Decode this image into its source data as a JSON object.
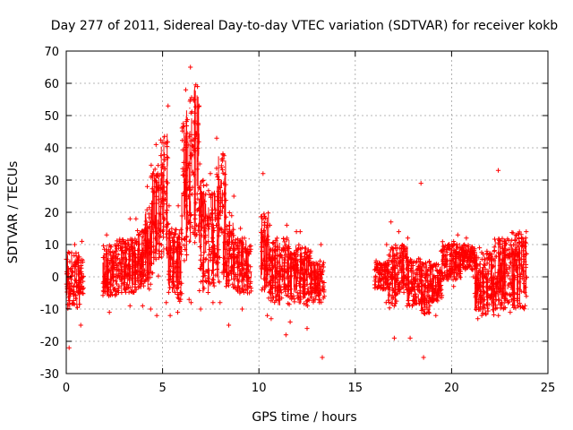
{
  "chart_data": {
    "type": "scatter",
    "title": "Day 277 of 2011, Sidereal Day-to-day VTEC variation (SDTVAR) for receiver kokb",
    "xlabel": "GPS time / hours",
    "ylabel": "SDTVAR / TECUs",
    "xlim": [
      0,
      25
    ],
    "ylim": [
      -30,
      70
    ],
    "xticks": [
      0,
      5,
      10,
      15,
      20,
      25
    ],
    "yticks": [
      -30,
      -20,
      -10,
      0,
      10,
      20,
      30,
      40,
      50,
      60,
      70
    ],
    "grid": true,
    "marker": "plus",
    "color": "#ff0000",
    "series": [
      {
        "name": "SDTVAR",
        "segments": [
          [
            0.0,
            0.7,
            -10,
            8,
            -22,
            10
          ],
          [
            0.7,
            0.9,
            -6,
            6,
            -15,
            11
          ],
          [
            1.9,
            2.6,
            -6,
            10,
            -11,
            13
          ],
          [
            2.6,
            3.6,
            -5,
            12,
            -9,
            18
          ],
          [
            3.6,
            4.1,
            -4,
            15,
            -9,
            18
          ],
          [
            4.1,
            4.4,
            -5,
            22,
            -10,
            28
          ],
          [
            4.4,
            4.9,
            0,
            35,
            -12,
            41
          ],
          [
            4.9,
            5.3,
            5,
            45,
            -8,
            53
          ],
          [
            5.3,
            5.7,
            -5,
            15,
            -12,
            22
          ],
          [
            5.7,
            6.0,
            -8,
            15,
            -11,
            22
          ],
          [
            6.0,
            6.4,
            5,
            55,
            -7,
            58
          ],
          [
            6.4,
            6.9,
            10,
            60,
            -8,
            65
          ],
          [
            6.9,
            7.4,
            -5,
            30,
            -10,
            35
          ],
          [
            7.4,
            7.8,
            -3,
            28,
            -8,
            32
          ],
          [
            7.8,
            8.3,
            -2,
            40,
            -8,
            43
          ],
          [
            8.3,
            8.7,
            -4,
            20,
            -15,
            25
          ],
          [
            8.7,
            9.6,
            -5,
            12,
            -10,
            15
          ],
          [
            10.1,
            10.5,
            -5,
            20,
            -12,
            32
          ],
          [
            10.5,
            11.0,
            -8,
            12,
            -13,
            16
          ],
          [
            11.0,
            11.6,
            -9,
            12,
            -18,
            16
          ],
          [
            11.6,
            12.1,
            -8,
            10,
            -14,
            14
          ],
          [
            12.1,
            12.7,
            -9,
            9,
            -16,
            14
          ],
          [
            12.7,
            13.4,
            -8,
            5,
            -25,
            10
          ],
          [
            16.0,
            16.7,
            -4,
            5,
            -8,
            10
          ],
          [
            16.7,
            17.2,
            -10,
            10,
            -19,
            17
          ],
          [
            17.2,
            17.7,
            -5,
            10,
            -9,
            14
          ],
          [
            17.7,
            18.4,
            -9,
            6,
            -19,
            12
          ],
          [
            18.4,
            18.9,
            -12,
            5,
            -25,
            29
          ],
          [
            18.9,
            19.5,
            -8,
            4,
            -12,
            8
          ],
          [
            19.5,
            20.5,
            -1,
            11,
            -3,
            13
          ],
          [
            20.5,
            21.2,
            2,
            10,
            0,
            12
          ],
          [
            21.2,
            22.2,
            -12,
            8,
            -13,
            9
          ],
          [
            22.2,
            23.0,
            -10,
            12,
            -12,
            33
          ],
          [
            23.0,
            23.9,
            -10,
            14,
            -11,
            14
          ]
        ]
      }
    ]
  }
}
